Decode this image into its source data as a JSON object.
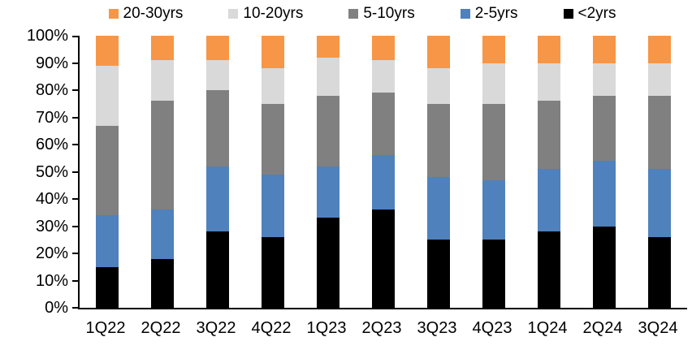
{
  "chart_data": {
    "type": "bar",
    "subtype": "stacked-100-percent-column",
    "title": "",
    "xlabel": "",
    "ylabel": "",
    "grid": false,
    "categories": [
      "1Q22",
      "2Q22",
      "3Q22",
      "4Q22",
      "1Q23",
      "2Q23",
      "3Q23",
      "4Q23",
      "1Q24",
      "2Q24",
      "3Q24"
    ],
    "series": [
      {
        "name": "<2yrs",
        "color": "#000000",
        "values": [
          15,
          18,
          28,
          26,
          33,
          36,
          25,
          25,
          28,
          30,
          26
        ]
      },
      {
        "name": "2-5yrs",
        "color": "#4F81BD",
        "values": [
          19,
          18,
          24,
          23,
          19,
          20,
          23,
          22,
          23,
          24,
          25
        ]
      },
      {
        "name": "5-10yrs",
        "color": "#808080",
        "values": [
          33,
          40,
          28,
          26,
          26,
          23,
          27,
          28,
          25,
          24,
          27
        ]
      },
      {
        "name": "10-20yrs",
        "color": "#D9D9D9",
        "values": [
          22,
          15,
          11,
          13,
          14,
          12,
          13,
          15,
          14,
          12,
          12
        ]
      },
      {
        "name": "20-30yrs",
        "color": "#F79646",
        "values": [
          11,
          9,
          9,
          12,
          8,
          9,
          12,
          10,
          10,
          10,
          10
        ]
      }
    ],
    "legend": {
      "position": "top",
      "order": [
        "20-30yrs",
        "10-20yrs",
        "5-10yrs",
        "2-5yrs",
        "<2yrs"
      ]
    },
    "y_axis": {
      "min": 0,
      "max": 100,
      "unit": "%",
      "tick_labels": [
        "0%",
        "10%",
        "20%",
        "30%",
        "40%",
        "50%",
        "60%",
        "70%",
        "80%",
        "90%",
        "100%"
      ]
    }
  },
  "colors": {
    "axis": "#000000",
    "text": "#000000",
    "background": "#FFFFFF"
  }
}
